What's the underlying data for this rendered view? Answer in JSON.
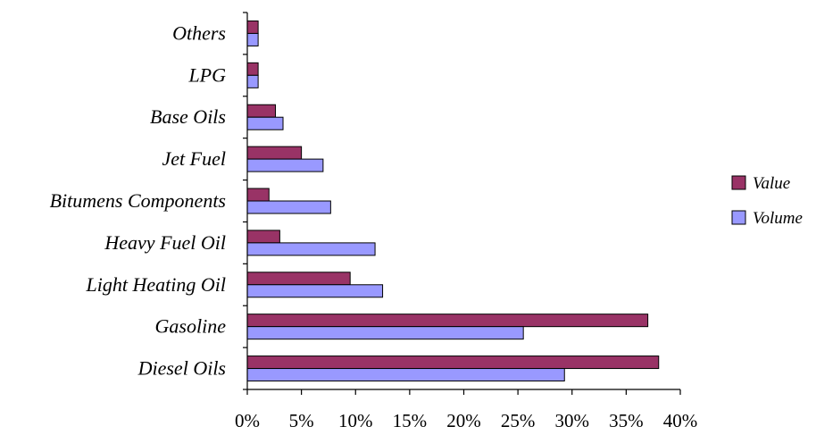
{
  "chart_data": {
    "type": "bar",
    "orientation": "horizontal",
    "categories": [
      "Diesel Oils",
      "Gasoline",
      "Light Heating Oil",
      "Heavy Fuel Oil",
      "Bitumens Components",
      "Jet Fuel",
      "Base Oils",
      "LPG",
      "Others"
    ],
    "series": [
      {
        "name": "Value",
        "color": "#993366",
        "values": [
          38,
          37,
          9.5,
          3,
          2,
          5,
          2.6,
          1,
          1
        ]
      },
      {
        "name": "Volume",
        "color": "#9999FF",
        "values": [
          29.3,
          25.5,
          12.5,
          11.8,
          7.7,
          7,
          3.3,
          1,
          1
        ]
      }
    ],
    "xlim": [
      0,
      40
    ],
    "x_ticks": [
      "0%",
      "5%",
      "10%",
      "15%",
      "20%",
      "25%",
      "30%",
      "35%",
      "40%"
    ],
    "x_tick_values": [
      0,
      5,
      10,
      15,
      20,
      25,
      30,
      35,
      40
    ],
    "title": "",
    "xlabel": "",
    "ylabel": "",
    "grid": false,
    "legend_position": "right"
  }
}
